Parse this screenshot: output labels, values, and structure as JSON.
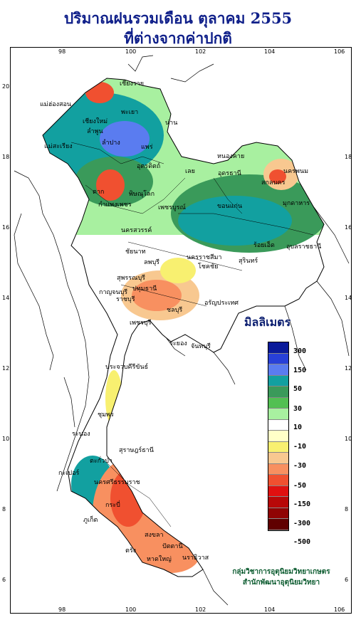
{
  "title_line1": "ปริมาณฝนรวมเดือน ตุลาคม 2555",
  "title_line2": "ที่ต่างจากค่าปกติ",
  "axis": {
    "top_lon": [
      "98",
      "100",
      "102",
      "104",
      "106"
    ],
    "bottom_lon": [
      "98",
      "100",
      "102",
      "104",
      "106"
    ],
    "left_lat": [
      "20",
      "18",
      "16",
      "14",
      "12",
      "10",
      "8",
      "6"
    ],
    "right_lat": [
      "18",
      "16",
      "14",
      "12",
      "10",
      "8",
      "6"
    ]
  },
  "legend": {
    "title": "มิลลิเมตร",
    "labels": [
      "300",
      "150",
      "50",
      "30",
      "10",
      "-10",
      "-30",
      "-50",
      "-150",
      "-300",
      "-500"
    ],
    "colors": [
      "#0a1a9a",
      "#2840d8",
      "#5a7cf0",
      "#12a0a0",
      "#3a9a5a",
      "#52c052",
      "#a8f0a0",
      "#ffffff",
      "#ffffc8",
      "#f8f070",
      "#f8c890",
      "#f89060",
      "#f05030",
      "#e01010",
      "#b80808",
      "#900404",
      "#600000"
    ]
  },
  "credit_line1": "กลุ่มวิชาการอุตุนิยมวิทยาเกษตร",
  "credit_line2": "สำนักพัฒนาอุตุนิยมวิทยา",
  "places": [
    "เชียงราย",
    "แม่ฮ่องสอน",
    "เชียงใหม่",
    "ลำพูน",
    "พะเยา",
    "น่าน",
    "ลำปาง",
    "แพร่",
    "แม่สะเรียง",
    "อุตรดิตถ์",
    "ตาก",
    "พิษณุโลก",
    "กำแพงเพชร",
    "เพชรบูรณ์",
    "นครสวรรค์",
    "หนองคาย",
    "เลย",
    "อุดรธานี",
    "สกลนคร",
    "นครพนม",
    "มุกดาหาร",
    "ขอนแก่น",
    "ร้อยเอ็ด",
    "อุบลราชธานี",
    "ชัยนาท",
    "ลพบุรี",
    "สุพรรณบุรี",
    "กาญจนบุรี",
    "นครราชสีมา",
    "โชคชัย",
    "สุรินทร์",
    "ปทุมธานี",
    "ราชบุรี",
    "ชลบุรี",
    "อรัญประเทศ",
    "เพชรบุรี",
    "ระยอง",
    "จันทบุรี",
    "ประจวบคีรีขันธ์",
    "ชุมพร",
    "ระนอง",
    "สุราษฎร์ธานี",
    "กะเปอร์",
    "นครศรีธรรมราช",
    "ภูเก็ต",
    "กระบี่",
    "ตรัง",
    "สงขลา",
    "ปัตตานี",
    "นราธิวาส",
    "ตะกั่วป่า",
    "หาดใหญ่"
  ]
}
